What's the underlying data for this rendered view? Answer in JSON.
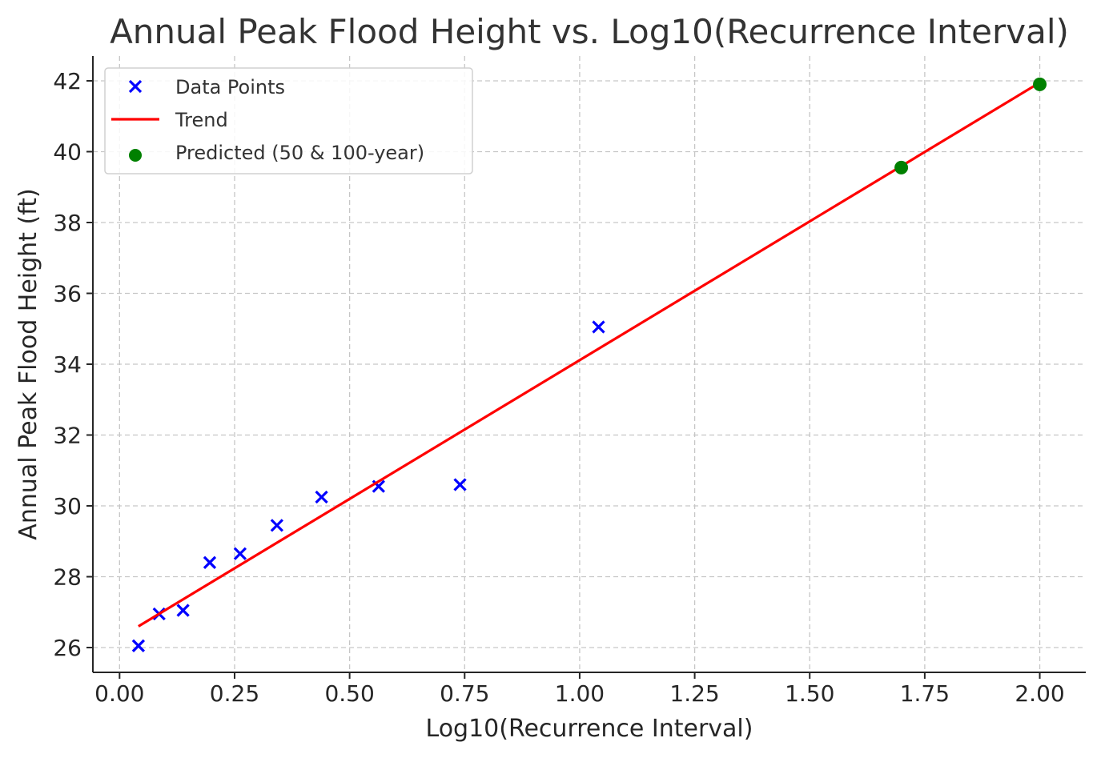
{
  "chart_data": {
    "type": "scatter",
    "title": "Annual Peak Flood Height vs. Log10(Recurrence Interval)",
    "xlabel": "Log10(Recurrence Interval)",
    "ylabel": "Annual Peak Flood Height (ft)",
    "xlim": [
      -0.058,
      2.1
    ],
    "ylim": [
      25.3,
      42.7
    ],
    "xticks": [
      "0.00",
      "0.25",
      "0.50",
      "0.75",
      "1.00",
      "1.25",
      "1.50",
      "1.75",
      "2.00"
    ],
    "xtick_values": [
      0,
      0.25,
      0.5,
      0.75,
      1.0,
      1.25,
      1.5,
      1.75,
      2.0
    ],
    "yticks": [
      "26",
      "28",
      "30",
      "32",
      "34",
      "36",
      "38",
      "40",
      "42"
    ],
    "ytick_values": [
      26,
      28,
      30,
      32,
      34,
      36,
      38,
      40,
      42
    ],
    "grid": true,
    "legend_position": "top-left",
    "series": [
      {
        "name": "Data Points",
        "kind": "scatter",
        "marker": "x",
        "color": "#0000ff",
        "x": [
          0.041,
          0.086,
          0.138,
          0.196,
          0.262,
          0.342,
          0.439,
          0.563,
          0.74,
          1.041
        ],
        "y": [
          26.05,
          26.95,
          27.05,
          28.4,
          28.65,
          29.45,
          30.25,
          30.55,
          30.6,
          35.05
        ]
      },
      {
        "name": "Trend",
        "kind": "line",
        "color": "#ff0000",
        "x": [
          0.041,
          2.0
        ],
        "y": [
          26.6,
          41.95
        ]
      },
      {
        "name": "Predicted (50 & 100-year)",
        "kind": "scatter",
        "marker": "o",
        "color": "#008000",
        "x": [
          1.699,
          2.0
        ],
        "y": [
          39.55,
          41.9
        ]
      }
    ]
  }
}
